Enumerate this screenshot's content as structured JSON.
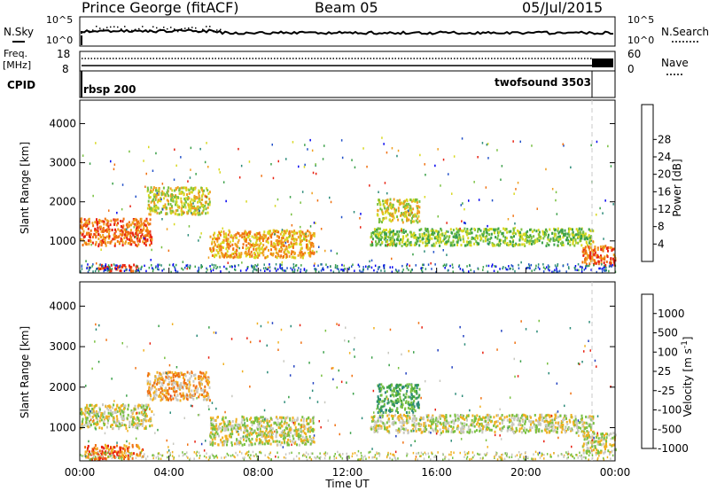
{
  "header": {
    "station": "Prince George (fitACF)",
    "beam": "Beam 05",
    "date": "05/Jul/2015"
  },
  "noise_panel": {
    "left_label": "N.Sky",
    "right_label": "N.Search",
    "left_ticks": [
      "10^5",
      "10^0"
    ],
    "right_ticks": [
      "10^5",
      "10^0"
    ]
  },
  "freq_panel": {
    "left_label_1": "Freq.",
    "left_label_2": "[MHz]",
    "right_label": "Nave",
    "left_ticks": [
      "18",
      "8"
    ],
    "right_ticks": [
      "60",
      "0"
    ]
  },
  "cpid_panel": {
    "label": "CPID",
    "modes": [
      {
        "name": "rbsp 200",
        "start_hour": 0.0,
        "end_hour": 23.05
      },
      {
        "name": "twofsound 3503",
        "start_hour": 23.05,
        "end_hour": 24.0
      }
    ]
  },
  "time_axis": {
    "label": "Time UT",
    "ticks": [
      "00:00",
      "04:00",
      "08:00",
      "12:00",
      "16:00",
      "20:00",
      "00:00"
    ]
  },
  "chart_data": [
    {
      "type": "heatmap",
      "name": "power",
      "ylabel": "Slant Range [km]",
      "xlim": [
        0,
        24
      ],
      "ylim": [
        180,
        4600
      ],
      "yticks": [
        "1000",
        "2000",
        "3000",
        "4000"
      ],
      "colorbar": {
        "label": "Power [dB]",
        "ticks": [
          "4",
          "8",
          "12",
          "16",
          "20",
          "24",
          "28"
        ],
        "colors": [
          "#0000f0",
          "#2050c8",
          "#2a8a78",
          "#3aa048",
          "#78c040",
          "#d8d820",
          "#f0a020",
          "#f07010",
          "#e82010"
        ]
      },
      "regions": [
        {
          "t0": 0.0,
          "t1": 3.2,
          "r0": 900,
          "r1": 1600,
          "level": 7
        },
        {
          "t0": 0.8,
          "t1": 2.6,
          "r0": 250,
          "r1": 420,
          "level": 8
        },
        {
          "t0": 3.0,
          "t1": 5.8,
          "r0": 1700,
          "r1": 2400,
          "level": 5
        },
        {
          "t0": 5.8,
          "t1": 10.5,
          "r0": 600,
          "r1": 1300,
          "level": 6
        },
        {
          "t0": 13.3,
          "t1": 15.2,
          "r0": 1500,
          "r1": 2100,
          "level": 5
        },
        {
          "t0": 13.0,
          "t1": 23.0,
          "r0": 900,
          "r1": 1350,
          "level": 4
        },
        {
          "t0": 22.5,
          "t1": 24.0,
          "r0": 400,
          "r1": 900,
          "level": 7
        }
      ]
    },
    {
      "type": "heatmap",
      "name": "velocity",
      "ylabel": "Slant Range [km]",
      "xlim": [
        0,
        24
      ],
      "ylim": [
        180,
        4600
      ],
      "yticks": [
        "1000",
        "2000",
        "3000",
        "4000"
      ],
      "colorbar": {
        "label": "Velocity [m s^-1]",
        "ticks": [
          "1000",
          "500",
          "100",
          "25",
          "-25",
          "-100",
          "-500",
          "-1000"
        ],
        "colors": [
          "#2040c0",
          "#2a8a78",
          "#3aa048",
          "#78c040",
          "#c8c8c0",
          "#f0b020",
          "#f07010",
          "#e82010"
        ]
      },
      "regions": [
        {
          "t0": 0.0,
          "t1": 3.2,
          "r0": 1000,
          "r1": 1600,
          "level": 4
        },
        {
          "t0": 0.2,
          "t1": 2.8,
          "r0": 250,
          "r1": 600,
          "level": 6
        },
        {
          "t0": 3.0,
          "t1": 5.8,
          "r0": 1700,
          "r1": 2400,
          "level": 5
        },
        {
          "t0": 5.8,
          "t1": 10.5,
          "r0": 600,
          "r1": 1300,
          "level": 4
        },
        {
          "t0": 13.3,
          "t1": 15.2,
          "r0": 1400,
          "r1": 2100,
          "level": 2
        },
        {
          "t0": 13.0,
          "t1": 23.0,
          "r0": 900,
          "r1": 1350,
          "level": 4
        },
        {
          "t0": 22.5,
          "t1": 24.0,
          "r0": 400,
          "r1": 900,
          "level": 4
        }
      ]
    }
  ]
}
